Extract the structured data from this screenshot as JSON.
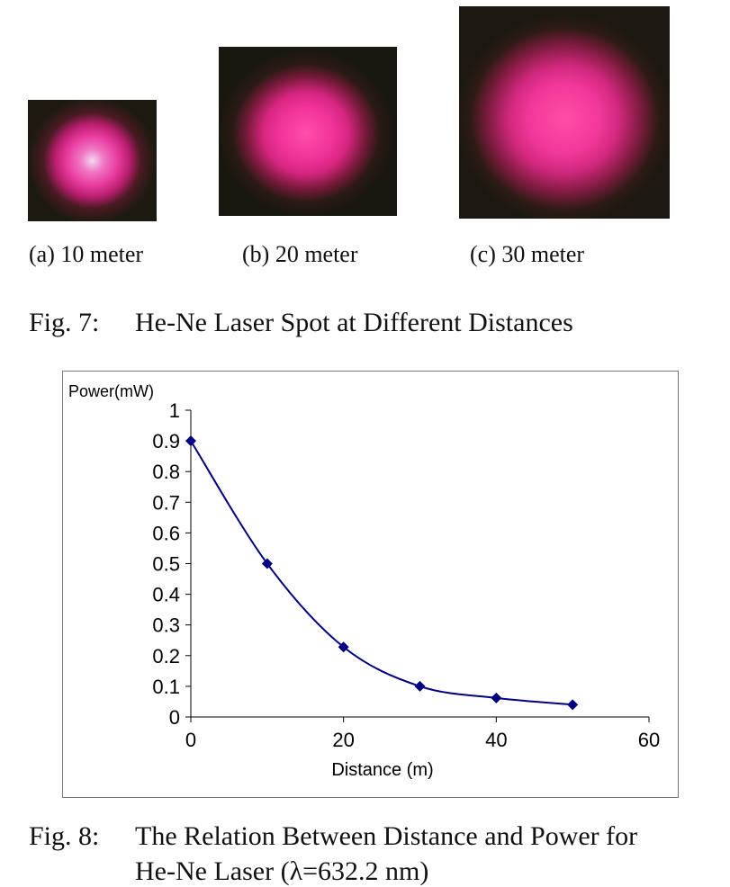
{
  "figure7": {
    "photos": [
      {
        "caption": "(a) 10 meter"
      },
      {
        "caption": "(b) 20 meter"
      },
      {
        "caption": "(c) 30 meter"
      }
    ],
    "label": "Fig. 7:",
    "title": "He-Ne Laser Spot at Different Distances"
  },
  "figure8": {
    "label": "Fig. 8:",
    "title_line1": "The Relation Between Distance and Power for",
    "title_line2": "He-Ne Laser (λ=632.2 nm)"
  },
  "chart_data": {
    "type": "line",
    "title": "",
    "xlabel": "Distance (m)",
    "ylabel": "Power(mW)",
    "xlim": [
      0,
      60
    ],
    "ylim": [
      0,
      1
    ],
    "x_ticks": [
      "0",
      "20",
      "40",
      "60"
    ],
    "y_ticks": [
      "0",
      "0.1",
      "0.2",
      "0.3",
      "0.4",
      "0.5",
      "0.6",
      "0.7",
      "0.8",
      "0.9",
      "1"
    ],
    "grid": false,
    "legend": "none",
    "series": [
      {
        "x": [
          0,
          10,
          20,
          30,
          40,
          50
        ],
        "y": [
          0.9,
          0.5,
          0.228,
          0.1,
          0.062,
          0.04
        ],
        "marker": "diamond",
        "smooth": true,
        "color": "#000080"
      }
    ]
  }
}
